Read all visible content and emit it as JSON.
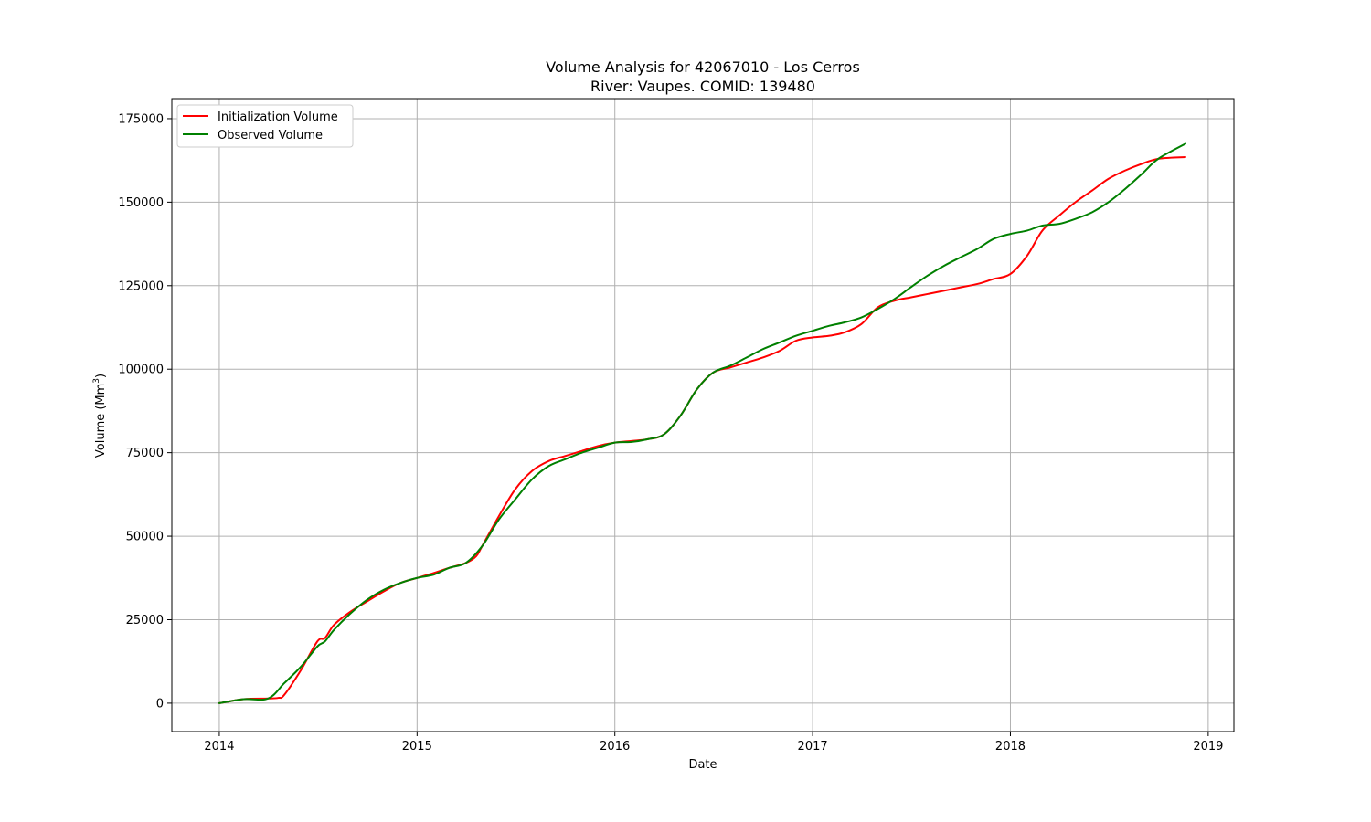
{
  "chart_data": {
    "type": "line",
    "title": "Volume Analysis for 42067010 - Los Cerros",
    "subtitle": "River: Vaupes. COMID: 139480",
    "xlabel": "Date",
    "ylabel": "Volume (Mm",
    "ylabel_superscript": "3",
    "ylabel_suffix": ")",
    "x_ticks": [
      "2014",
      "2015",
      "2016",
      "2017",
      "2018",
      "2019"
    ],
    "y_ticks": [
      "0",
      "25000",
      "50000",
      "75000",
      "100000",
      "125000",
      "150000",
      "175000"
    ],
    "xlim": [
      2013.76,
      2019.13
    ],
    "ylim": [
      -8500,
      181000
    ],
    "grid": true,
    "legend_position": "upper-left",
    "series": [
      {
        "name": "Initialization Volume",
        "color": "#ff0000",
        "x": [
          "2014-01-01",
          "2014-02-15",
          "2014-04-01",
          "2014-04-20",
          "2014-05-01",
          "2014-06-01",
          "2014-07-01",
          "2014-07-15",
          "2014-08-01",
          "2014-09-01",
          "2014-10-01",
          "2014-11-01",
          "2014-12-01",
          "2015-01-01",
          "2015-02-01",
          "2015-03-01",
          "2015-04-01",
          "2015-04-20",
          "2015-05-01",
          "2015-06-01",
          "2015-07-01",
          "2015-08-01",
          "2015-09-01",
          "2015-10-01",
          "2015-11-01",
          "2015-12-01",
          "2016-01-01",
          "2016-02-01",
          "2016-03-01",
          "2016-04-01",
          "2016-05-01",
          "2016-06-01",
          "2016-07-01",
          "2016-08-01",
          "2016-09-01",
          "2016-10-01",
          "2016-11-01",
          "2016-12-01",
          "2017-01-01",
          "2017-02-01",
          "2017-03-01",
          "2017-04-01",
          "2017-05-01",
          "2017-06-01",
          "2017-07-01",
          "2017-08-01",
          "2017-09-01",
          "2017-10-01",
          "2017-11-01",
          "2017-12-01",
          "2018-01-01",
          "2018-02-01",
          "2018-03-01",
          "2018-04-01",
          "2018-05-01",
          "2018-06-01",
          "2018-07-01",
          "2018-08-01",
          "2018-09-01",
          "2018-10-01",
          "2018-11-20"
        ],
        "y": [
          0,
          1200,
          1400,
          1600,
          2500,
          10000,
          18500,
          19500,
          23500,
          27500,
          30500,
          33500,
          36000,
          37500,
          39000,
          40500,
          42000,
          44000,
          47000,
          56000,
          64000,
          69500,
          72500,
          74000,
          75500,
          77000,
          78000,
          78500,
          79000,
          80500,
          86000,
          94000,
          99000,
          100500,
          102000,
          103500,
          105500,
          108500,
          109500,
          110000,
          111000,
          113500,
          118500,
          120500,
          121500,
          122500,
          123500,
          124500,
          125500,
          127000,
          128500,
          134000,
          141500,
          146000,
          150000,
          153500,
          157000,
          159500,
          161500,
          163000,
          163500
        ],
        "y_adjust_note": ""
      },
      {
        "name": "Observed Volume",
        "color": "#008000",
        "x": [
          "2014-01-01",
          "2014-02-15",
          "2014-04-01",
          "2014-05-01",
          "2014-06-01",
          "2014-07-01",
          "2014-07-15",
          "2014-08-01",
          "2014-09-01",
          "2014-10-01",
          "2014-11-01",
          "2014-12-01",
          "2015-01-01",
          "2015-02-01",
          "2015-03-01",
          "2015-04-01",
          "2015-05-01",
          "2015-06-01",
          "2015-07-01",
          "2015-08-01",
          "2015-09-01",
          "2015-10-01",
          "2015-11-01",
          "2015-12-01",
          "2016-01-01",
          "2016-02-01",
          "2016-03-01",
          "2016-04-01",
          "2016-05-01",
          "2016-06-01",
          "2016-07-01",
          "2016-08-01",
          "2016-09-01",
          "2016-10-01",
          "2016-11-01",
          "2016-12-01",
          "2017-01-01",
          "2017-02-01",
          "2017-03-01",
          "2017-04-01",
          "2017-05-01",
          "2017-06-01",
          "2017-07-01",
          "2017-08-01",
          "2017-09-01",
          "2017-10-01",
          "2017-11-01",
          "2017-12-01",
          "2018-01-01",
          "2018-02-01",
          "2018-03-01",
          "2018-04-01",
          "2018-05-01",
          "2018-06-01",
          "2018-07-01",
          "2018-08-01",
          "2018-09-01",
          "2018-10-01",
          "2018-11-20"
        ],
        "y": [
          0,
          1200,
          1400,
          6000,
          11000,
          17000,
          18500,
          22000,
          27000,
          31000,
          34000,
          36000,
          37500,
          38500,
          40500,
          42000,
          47000,
          55000,
          61000,
          67000,
          71000,
          73000,
          75000,
          76500,
          78000,
          78200,
          79000,
          80500,
          86000,
          94000,
          99000,
          101000,
          103500,
          106000,
          108000,
          110000,
          111500,
          113000,
          114000,
          115500,
          118000,
          121000,
          124500,
          128000,
          131000,
          133500,
          136000,
          139000,
          140500,
          141500,
          143000,
          143500,
          145000,
          147000,
          150000,
          154000,
          158500,
          163000,
          167500
        ]
      }
    ]
  }
}
